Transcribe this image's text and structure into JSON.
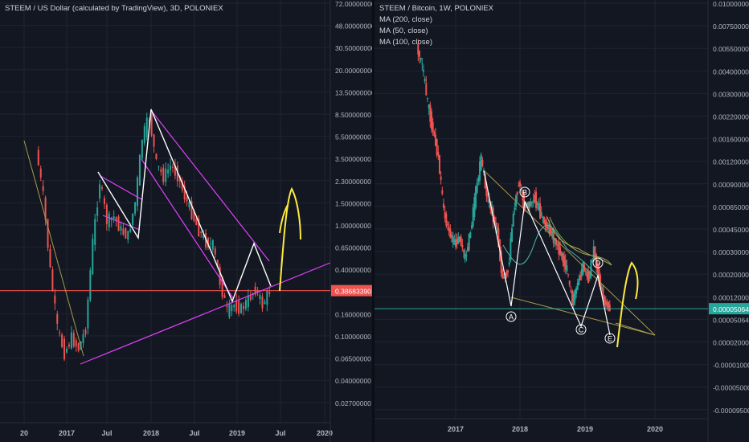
{
  "colors": {
    "bg": "#131722",
    "grid": "#1f2433",
    "up": "#26a69a",
    "down": "#ef5350",
    "axisText": "#b2b5be",
    "pink": "#e040fb",
    "white": "#ffffff",
    "yellow": "#ffeb3b",
    "olive": "#a89a4a",
    "priceTag1": "#ef5350",
    "priceTag2": "#26a69a"
  },
  "chart_data": [
    {
      "type": "candlestick",
      "title": "STEEM / US Dollar (calculated by TradingView), 3D, POLONIEX",
      "xticks": [
        "20",
        "2017",
        "Jul",
        "2018",
        "Jul",
        "2019",
        "Jul",
        "2020"
      ],
      "yscale": "log",
      "yticks": [
        "72.00000000",
        "48.00000000",
        "30.50000000",
        "20.00000000",
        "13.50000000",
        "8.50000000",
        "5.50000000",
        "3.50000000",
        "2.30000000",
        "1.50000000",
        "1.00000000",
        "0.65000000",
        "0.40000000",
        "0.26000000",
        "0.16000000",
        "0.10000000",
        "0.06500000",
        "0.04000000",
        "0.02700000"
      ],
      "last_price": "0.38683390",
      "price_path": [
        {
          "x": "2016-09",
          "y": 4.5
        },
        {
          "x": "2016-10",
          "y": 2.0
        },
        {
          "x": "2016-11",
          "y": 0.55
        },
        {
          "x": "2016-12",
          "y": 0.2
        },
        {
          "x": "2017-01",
          "y": 0.13
        },
        {
          "x": "2017-02",
          "y": 0.17
        },
        {
          "x": "2017-03",
          "y": 0.14
        },
        {
          "x": "2017-04",
          "y": 0.2
        },
        {
          "x": "2017-05",
          "y": 0.9
        },
        {
          "x": "2017-06",
          "y": 2.6
        },
        {
          "x": "2017-07",
          "y": 1.3
        },
        {
          "x": "2017-08",
          "y": 1.4
        },
        {
          "x": "2017-09",
          "y": 1.1
        },
        {
          "x": "2017-10",
          "y": 1.0
        },
        {
          "x": "2017-11",
          "y": 1.8
        },
        {
          "x": "2017-12",
          "y": 5.5
        },
        {
          "x": "2018-01",
          "y": 8.0
        },
        {
          "x": "2018-02",
          "y": 3.5
        },
        {
          "x": "2018-03",
          "y": 2.8
        },
        {
          "x": "2018-04",
          "y": 3.4
        },
        {
          "x": "2018-05",
          "y": 2.9
        },
        {
          "x": "2018-06",
          "y": 2.0
        },
        {
          "x": "2018-07",
          "y": 1.5
        },
        {
          "x": "2018-08",
          "y": 1.1
        },
        {
          "x": "2018-09",
          "y": 0.9
        },
        {
          "x": "2018-10",
          "y": 0.85
        },
        {
          "x": "2018-11",
          "y": 0.45
        },
        {
          "x": "2018-12",
          "y": 0.27
        },
        {
          "x": "2019-01",
          "y": 0.3
        },
        {
          "x": "2019-02",
          "y": 0.28
        },
        {
          "x": "2019-03",
          "y": 0.33
        },
        {
          "x": "2019-04",
          "y": 0.4
        },
        {
          "x": "2019-05",
          "y": 0.3
        },
        {
          "x": "2019-06",
          "y": 0.387
        }
      ]
    },
    {
      "type": "candlestick",
      "title": "STEEM / Bitcoin, 1W, POLONIEX",
      "legend": [
        "MA (200, close)",
        "MA (50, close)",
        "MA (100, close)"
      ],
      "xticks": [
        "2017",
        "2018",
        "2019",
        "2020"
      ],
      "yticks": [
        "0.01000000",
        "0.00750000",
        "0.00550000",
        "0.00400000",
        "0.00300000",
        "0.00220000",
        "0.00160000",
        "0.00120000",
        "0.00090000",
        "0.00065000",
        "0.00045000",
        "0.00030000",
        "0.00020000",
        "0.00012000",
        "0.00005064",
        "0.00002000",
        "-0.00001000",
        "-0.00005000",
        "-0.00009500"
      ],
      "last_price": "0.00005064",
      "wave_labels": [
        "A",
        "B",
        "C",
        "D",
        "E"
      ],
      "price_path": [
        {
          "x": "2016-06",
          "y": 0.0055
        },
        {
          "x": "2016-07",
          "y": 0.004
        },
        {
          "x": "2016-08",
          "y": 0.0022
        },
        {
          "x": "2016-09",
          "y": 0.0014
        },
        {
          "x": "2016-10",
          "y": 0.0009
        },
        {
          "x": "2016-11",
          "y": 0.00035
        },
        {
          "x": "2016-12",
          "y": 0.00025
        },
        {
          "x": "2017-01",
          "y": 0.0002
        },
        {
          "x": "2017-02",
          "y": 0.00022
        },
        {
          "x": "2017-03",
          "y": 0.00015
        },
        {
          "x": "2017-04",
          "y": 0.00025
        },
        {
          "x": "2017-05",
          "y": 0.0005
        },
        {
          "x": "2017-06",
          "y": 0.00088
        },
        {
          "x": "2017-07",
          "y": 0.00048
        },
        {
          "x": "2017-08",
          "y": 0.00035
        },
        {
          "x": "2017-09",
          "y": 0.00025
        },
        {
          "x": "2017-10",
          "y": 0.0001
        },
        {
          "x": "2017-11",
          "y": 0.00012
        },
        {
          "x": "2017-12",
          "y": 0.00035
        },
        {
          "x": "2018-01",
          "y": 0.0006
        },
        {
          "x": "2018-02",
          "y": 0.0004
        },
        {
          "x": "2018-03",
          "y": 0.0004
        },
        {
          "x": "2018-04",
          "y": 0.00045
        },
        {
          "x": "2018-05",
          "y": 0.00035
        },
        {
          "x": "2018-06",
          "y": 0.00028
        },
        {
          "x": "2018-07",
          "y": 0.00025
        },
        {
          "x": "2018-08",
          "y": 0.0002
        },
        {
          "x": "2018-09",
          "y": 0.00016
        },
        {
          "x": "2018-10",
          "y": 0.00012
        },
        {
          "x": "2018-11",
          "y": 6e-05
        },
        {
          "x": "2018-12",
          "y": 9e-05
        },
        {
          "x": "2019-01",
          "y": 0.00013
        },
        {
          "x": "2019-02",
          "y": 0.0001
        },
        {
          "x": "2019-03",
          "y": 0.00018
        },
        {
          "x": "2019-04",
          "y": 0.0001
        },
        {
          "x": "2019-05",
          "y": 6e-05
        },
        {
          "x": "2019-06",
          "y": 5.064e-05
        }
      ]
    }
  ]
}
